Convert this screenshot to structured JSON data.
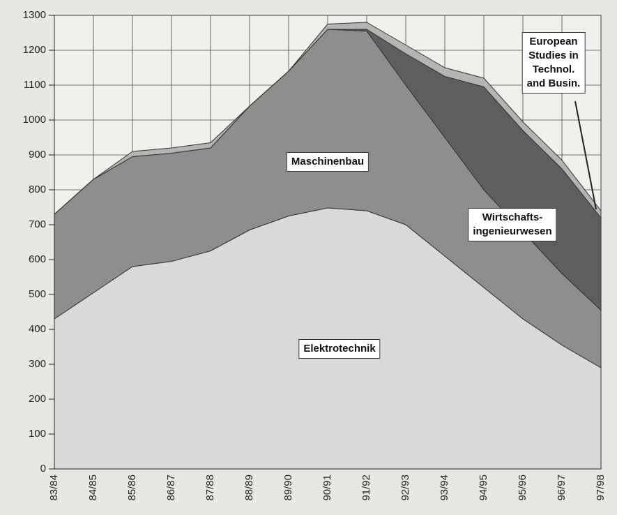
{
  "chart_data": {
    "type": "stacked_area",
    "categories": [
      "83/84",
      "84/85",
      "85/86",
      "86/87",
      "87/88",
      "88/89",
      "89/90",
      "90/91",
      "91/92",
      "92/93",
      "93/94",
      "94/95",
      "95/96",
      "96/97",
      "97/98"
    ],
    "series": [
      {
        "name": "Elektrotechnik",
        "color": "#d9d9d7",
        "values": [
          430,
          505,
          580,
          595,
          625,
          685,
          725,
          748,
          740,
          700,
          610,
          520,
          430,
          355,
          290
        ]
      },
      {
        "name": "Maschinenbau",
        "color": "#8e8e8c",
        "values": [
          300,
          325,
          315,
          310,
          295,
          355,
          415,
          512,
          515,
          400,
          340,
          280,
          250,
          205,
          165
        ]
      },
      {
        "name": "Wirtschafts-\ningenieurwesen",
        "color": "#5e5e5c",
        "values": [
          0,
          0,
          0,
          0,
          0,
          0,
          0,
          0,
          5,
          90,
          175,
          295,
          290,
          300,
          265
        ]
      },
      {
        "name": "European\nStudies in\nTechnol.\nand Busin.",
        "color": "#b4b4b2",
        "values": [
          0,
          0,
          15,
          15,
          15,
          0,
          0,
          15,
          20,
          25,
          25,
          25,
          25,
          25,
          20
        ]
      }
    ],
    "ylim": [
      0,
      1300
    ],
    "yticks": [
      0,
      100,
      200,
      300,
      400,
      500,
      600,
      700,
      800,
      900,
      1000,
      1100,
      1200,
      1300
    ],
    "grid": true
  }
}
